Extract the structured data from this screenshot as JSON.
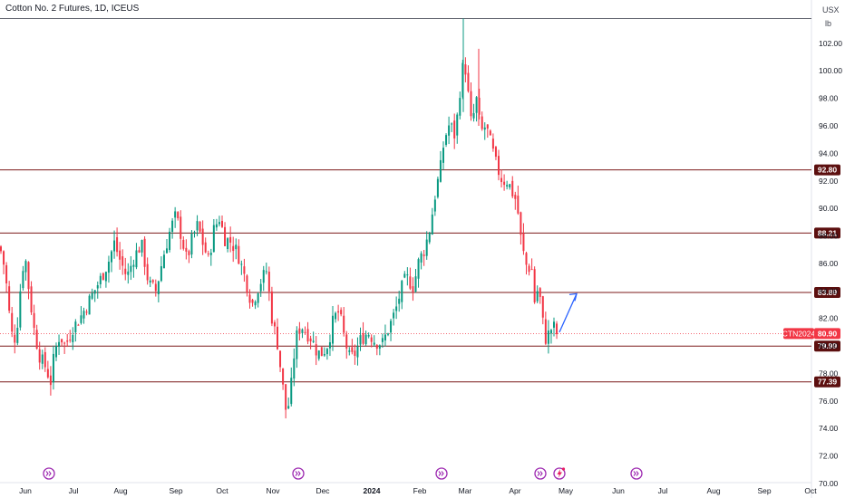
{
  "chart_data": {
    "type": "candlestick",
    "title": "Cotton No. 2 Futures, 1D, ICEUS",
    "currency": "USX",
    "unit": "lb",
    "ylim": [
      69.6,
      104.5
    ],
    "y_ticks": [
      "102.00",
      "100.00",
      "98.00",
      "96.00",
      "94.00",
      "92.00",
      "90.00",
      "88.00",
      "86.00",
      "84.00",
      "82.00",
      "80.00",
      "78.00",
      "76.00",
      "74.00",
      "72.00",
      "70.00"
    ],
    "x_ticks": [
      {
        "label": "Jun",
        "bold": false
      },
      {
        "label": "Jul",
        "bold": false
      },
      {
        "label": "Aug",
        "bold": false
      },
      {
        "label": "Sep",
        "bold": false
      },
      {
        "label": "Oct",
        "bold": false
      },
      {
        "label": "Nov",
        "bold": false
      },
      {
        "label": "Dec",
        "bold": false
      },
      {
        "label": "2024",
        "bold": true
      },
      {
        "label": "Feb",
        "bold": false
      },
      {
        "label": "Mar",
        "bold": false
      },
      {
        "label": "Apr",
        "bold": false
      },
      {
        "label": "May",
        "bold": false
      },
      {
        "label": "Jun",
        "bold": false
      },
      {
        "label": "Jul",
        "bold": false
      },
      {
        "label": "Aug",
        "bold": false
      },
      {
        "label": "Sep",
        "bold": false
      },
      {
        "label": "Oct",
        "bold": false
      }
    ],
    "horizontal_levels": [
      {
        "value": 92.8,
        "label": "92.80"
      },
      {
        "value": 88.21,
        "label": "88.21"
      },
      {
        "value": 83.89,
        "label": "83.89"
      },
      {
        "value": 79.99,
        "label": "79.99"
      },
      {
        "value": 77.39,
        "label": "77.39"
      }
    ],
    "top_level": 103.8,
    "symbol_label": "CTN2024",
    "last_price": 80.9,
    "last_price_label": "80.90",
    "anchors": [
      [
        0,
        87.2
      ],
      [
        4,
        86.0
      ],
      [
        8,
        84.0
      ],
      [
        12,
        81.0
      ],
      [
        16,
        80.5
      ],
      [
        20,
        82.0
      ],
      [
        24,
        85.5
      ],
      [
        28,
        86.4
      ],
      [
        32,
        84.0
      ],
      [
        38,
        81.0
      ],
      [
        44,
        79.2
      ],
      [
        50,
        78.5
      ],
      [
        56,
        77.4
      ],
      [
        60,
        79.5
      ],
      [
        66,
        80.8
      ],
      [
        72,
        80.0
      ],
      [
        80,
        81.3
      ],
      [
        88,
        82.0
      ],
      [
        96,
        83.0
      ],
      [
        104,
        84.0
      ],
      [
        112,
        85.0
      ],
      [
        120,
        86.2
      ],
      [
        126,
        87.5
      ],
      [
        132,
        86.3
      ],
      [
        140,
        85.0
      ],
      [
        148,
        86.5
      ],
      [
        156,
        87.4
      ],
      [
        164,
        84.5
      ],
      [
        172,
        84.0
      ],
      [
        180,
        86.5
      ],
      [
        188,
        88.5
      ],
      [
        194,
        89.5
      ],
      [
        200,
        88.0
      ],
      [
        206,
        86.2
      ],
      [
        212,
        87.8
      ],
      [
        218,
        88.8
      ],
      [
        224,
        87.4
      ],
      [
        230,
        86.2
      ],
      [
        236,
        88.5
      ],
      [
        242,
        89.3
      ],
      [
        248,
        87.8
      ],
      [
        254,
        87.6
      ],
      [
        262,
        86.8
      ],
      [
        270,
        85.0
      ],
      [
        278,
        83.0
      ],
      [
        286,
        84.5
      ],
      [
        294,
        85.5
      ],
      [
        300,
        82.0
      ],
      [
        306,
        80.2
      ],
      [
        312,
        77.0
      ],
      [
        316,
        75.0
      ],
      [
        320,
        76.3
      ],
      [
        326,
        80.5
      ],
      [
        332,
        81.5
      ],
      [
        338,
        81.0
      ],
      [
        344,
        80.5
      ],
      [
        350,
        79.5
      ],
      [
        356,
        79.5
      ],
      [
        362,
        80.2
      ],
      [
        368,
        82.0
      ],
      [
        374,
        82.5
      ],
      [
        380,
        80.5
      ],
      [
        386,
        79.0
      ],
      [
        392,
        79.5
      ],
      [
        398,
        80.5
      ],
      [
        406,
        81.0
      ],
      [
        414,
        80.3
      ],
      [
        422,
        80.2
      ],
      [
        430,
        81.5
      ],
      [
        436,
        82.5
      ],
      [
        442,
        84.0
      ],
      [
        448,
        85.0
      ],
      [
        456,
        84.3
      ],
      [
        462,
        86.2
      ],
      [
        468,
        87.0
      ],
      [
        474,
        88.5
      ],
      [
        480,
        91.0
      ],
      [
        486,
        93.0
      ],
      [
        490,
        95.0
      ],
      [
        496,
        96.2
      ],
      [
        502,
        95.2
      ],
      [
        508,
        99.0
      ],
      [
        512,
        101.0
      ],
      [
        516,
        98.5
      ],
      [
        520,
        96.0
      ],
      [
        526,
        98.0
      ],
      [
        530,
        95.5
      ],
      [
        536,
        96.0
      ],
      [
        542,
        94.5
      ],
      [
        548,
        93.0
      ],
      [
        554,
        92.0
      ],
      [
        560,
        92.0
      ],
      [
        566,
        91.0
      ],
      [
        570,
        90.5
      ],
      [
        574,
        88.0
      ],
      [
        578,
        86.5
      ],
      [
        582,
        85.5
      ],
      [
        586,
        86.0
      ],
      [
        590,
        83.0
      ],
      [
        594,
        84.5
      ],
      [
        598,
        82.0
      ],
      [
        602,
        80.5
      ],
      [
        606,
        81.0
      ],
      [
        610,
        81.5
      ],
      [
        614,
        80.9
      ],
      [
        618,
        80.9
      ]
    ],
    "arrow": {
      "from": [
        617,
        81.0
      ],
      "to": [
        636,
        83.8
      ]
    }
  },
  "icons": {
    "event_markers": [
      "forward-event-icon",
      "forward-event-icon",
      "forward-event-icon",
      "forward-event-icon",
      "forward-event-icon"
    ],
    "lightning": "lightning-event-icon"
  },
  "colors": {
    "up": "#089981",
    "down": "#f23645",
    "level_line": "#7b1a1a",
    "level_label_bg": "#5c0f0f",
    "price_label_bg": "#f23645",
    "arrow": "#2962ff",
    "event_icon": "#9c27b0",
    "lightning": "#e91e63"
  }
}
